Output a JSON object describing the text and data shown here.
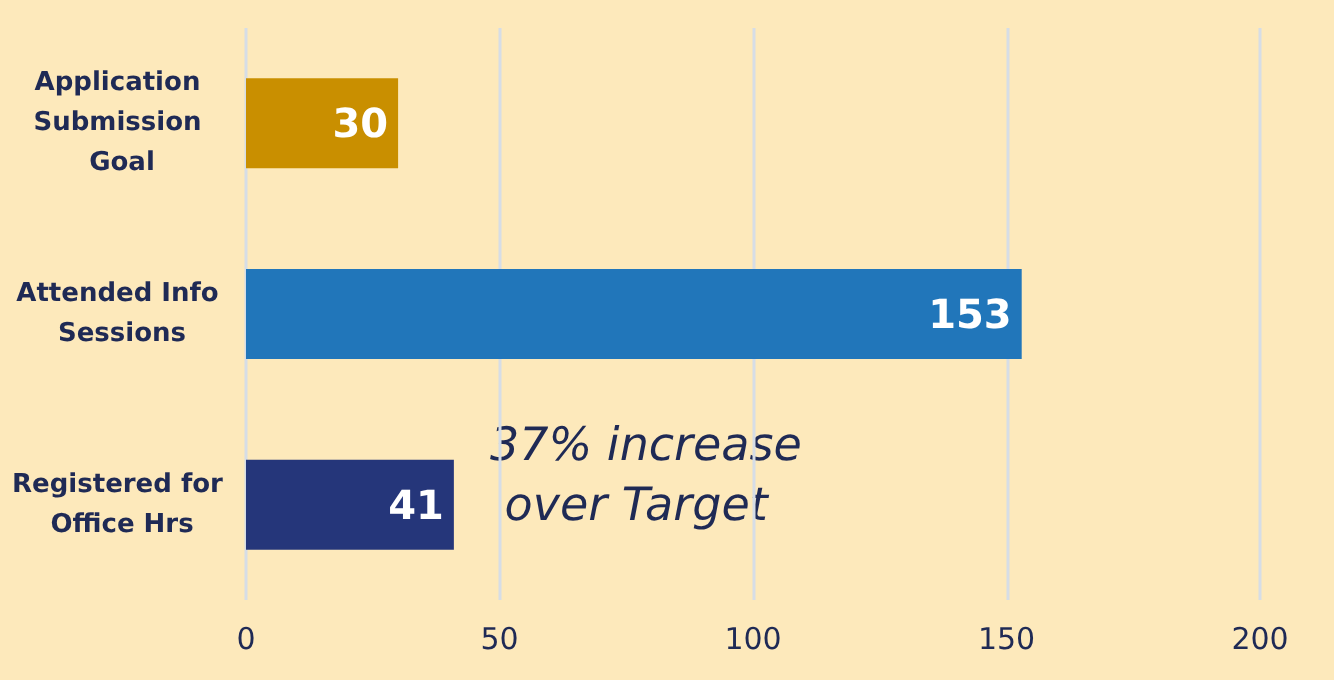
{
  "chart_data": {
    "type": "bar",
    "orientation": "horizontal",
    "categories": [
      "Application Submission Goal",
      "Attended Info Sessions",
      "Registered for Office Hrs"
    ],
    "values": [
      30,
      153,
      41
    ],
    "colors": [
      "#c98f00",
      "#2176ba",
      "#25367a"
    ],
    "xlim": [
      0,
      200
    ],
    "xticks": [
      0,
      50,
      100,
      150,
      200
    ],
    "grid": "x",
    "data_labels": true,
    "annotations": [
      "37% increase over Target"
    ]
  }
}
